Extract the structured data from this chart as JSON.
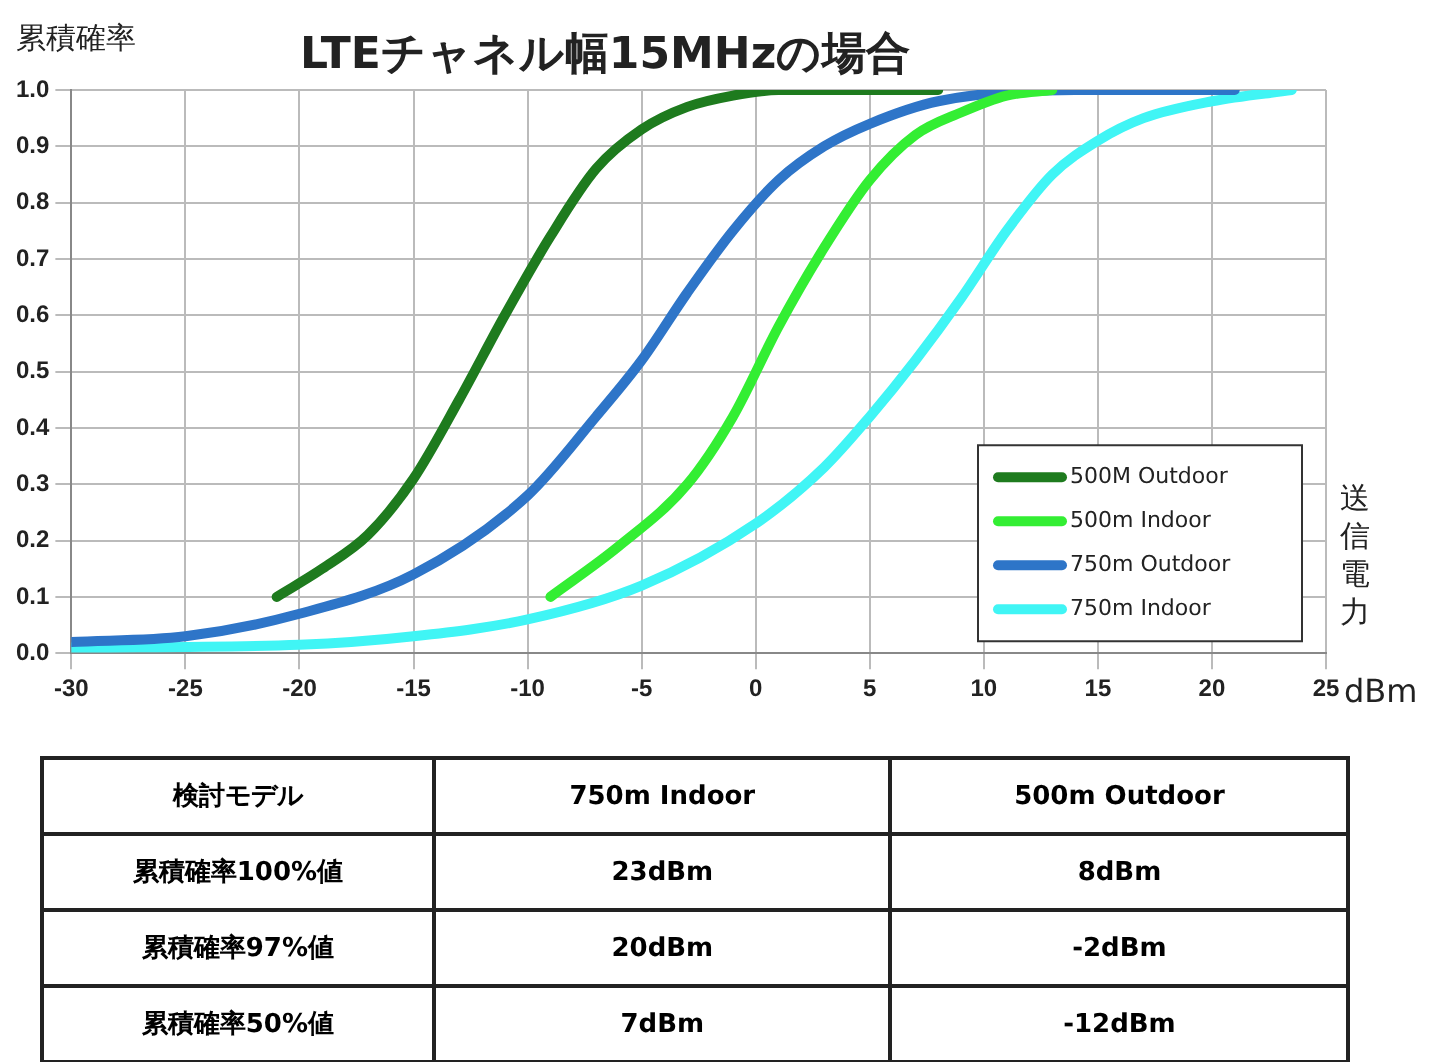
{
  "chart_data": {
    "type": "line",
    "title": "LTEチャネル幅15MHzの場合",
    "ylabel": "累積確率",
    "xlabel": "dBm",
    "annotations": [
      "送信電力",
      "検討モデル",
      "750m  Indoor",
      "500m Outdoor",
      "累積確率100%値",
      "23dBm",
      "8dBm",
      "累積確率97%値",
      "20dBm",
      "-2dBm",
      "累積確率50%値",
      "7dBm",
      "-12dBm"
    ],
    "series": [
      {
        "name": "500M Outdoor",
        "color": "#1e7b1e",
        "x": [
          -21,
          -19,
          -17,
          -15,
          -13,
          -11,
          -9,
          -7,
          -5,
          -3,
          -1,
          1,
          3,
          8
        ],
        "values": [
          0.1,
          0.15,
          0.21,
          0.31,
          0.45,
          0.6,
          0.74,
          0.86,
          0.93,
          0.97,
          0.99,
          1.0,
          1.0,
          1.0
        ]
      },
      {
        "name": "500m Indoor",
        "color": "#33ee33",
        "x": [
          -9,
          -6,
          -3,
          -1,
          1,
          3,
          5,
          7,
          9,
          11,
          13
        ],
        "values": [
          0.1,
          0.19,
          0.3,
          0.42,
          0.58,
          0.72,
          0.84,
          0.92,
          0.96,
          0.99,
          1.0
        ]
      },
      {
        "name": "750m Outdoor",
        "color": "#2e75c8",
        "x": [
          -30,
          -25,
          -20,
          -15,
          -10,
          -7,
          -5,
          -3,
          -1,
          1,
          3,
          5,
          8,
          14,
          21
        ],
        "values": [
          0.02,
          0.03,
          0.07,
          0.14,
          0.28,
          0.42,
          0.52,
          0.64,
          0.75,
          0.84,
          0.9,
          0.94,
          0.98,
          1.0,
          1.0
        ]
      },
      {
        "name": "750m Indoor",
        "color": "#40f5f5",
        "x": [
          -30,
          -20,
          -15,
          -10,
          -5,
          0,
          3,
          5,
          7,
          9,
          11,
          13,
          15,
          17,
          20,
          23.5
        ],
        "values": [
          0.01,
          0.015,
          0.03,
          0.06,
          0.12,
          0.23,
          0.33,
          0.42,
          0.52,
          0.63,
          0.75,
          0.85,
          0.91,
          0.95,
          0.98,
          1.0
        ]
      }
    ],
    "xlim": [
      -30,
      25
    ],
    "xticks": [
      -30,
      -25,
      -20,
      -15,
      -10,
      -5,
      0,
      5,
      10,
      15,
      20,
      25
    ],
    "ylim": [
      0,
      1
    ],
    "yticks": [
      {
        "value": 0,
        "label": "0.0"
      },
      {
        "value": 0.1,
        "label": "0.1"
      },
      {
        "value": 0.2,
        "label": "0.2"
      },
      {
        "value": 0.3,
        "label": "0.3"
      },
      {
        "value": 0.4,
        "label": "0.4"
      },
      {
        "value": 0.5,
        "label": "0.5"
      },
      {
        "value": 0.6,
        "label": "0.6"
      },
      {
        "value": 0.7,
        "label": "0.7"
      },
      {
        "value": 0.8,
        "label": "0.8"
      },
      {
        "value": 0.9,
        "label": "0.9"
      },
      {
        "value": 1,
        "label": "1.0"
      }
    ],
    "grid": true,
    "legend": "bottom right",
    "marker": "none",
    "line_style": "solid"
  }
}
